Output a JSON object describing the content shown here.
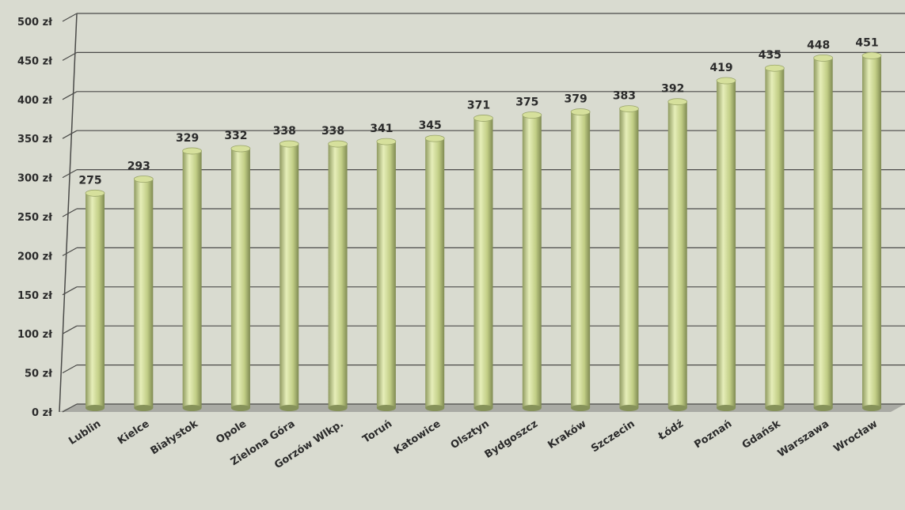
{
  "chart_data": {
    "type": "bar",
    "title": "",
    "xlabel": "",
    "ylabel": "",
    "categories": [
      "Lublin",
      "Kielce",
      "Białystok",
      "Opole",
      "Zielona Góra",
      "Gorzów Wlkp.",
      "Toruń",
      "Katowice",
      "Olsztyn",
      "Bydgoszcz",
      "Kraków",
      "Szczecin",
      "Łódź",
      "Poznań",
      "Gdańsk",
      "Warszawa",
      "Wrocław"
    ],
    "values": [
      275,
      293,
      329,
      332,
      338,
      338,
      341,
      345,
      371,
      375,
      379,
      383,
      392,
      419,
      435,
      448,
      451
    ],
    "data_labels": [
      "275",
      "293",
      "329",
      "332",
      "338",
      "338",
      "341",
      "345",
      "371",
      "375",
      "379",
      "383",
      "392",
      "419",
      "435",
      "448",
      "451"
    ],
    "ylim": [
      0,
      500
    ],
    "yticks": [
      0,
      50,
      100,
      150,
      200,
      250,
      300,
      350,
      400,
      450,
      500
    ],
    "ytick_labels": [
      "0 zł",
      "50 zł",
      "100 zł",
      "150 zł",
      "200 zł",
      "250 zł",
      "300 zł",
      "350 zł",
      "400 zł",
      "450 zł",
      "500 zł"
    ],
    "grid": true,
    "legend": "none",
    "colors": {
      "background": "#d9dbd0",
      "bar_light": "#e3ebb4",
      "bar_mid": "#c3cf86",
      "bar_dark": "#86925a",
      "bar_top": "#d6e09c",
      "grid": "#4a4a48",
      "floor": "#a9aaa4",
      "text": "#2b2b2b"
    }
  }
}
